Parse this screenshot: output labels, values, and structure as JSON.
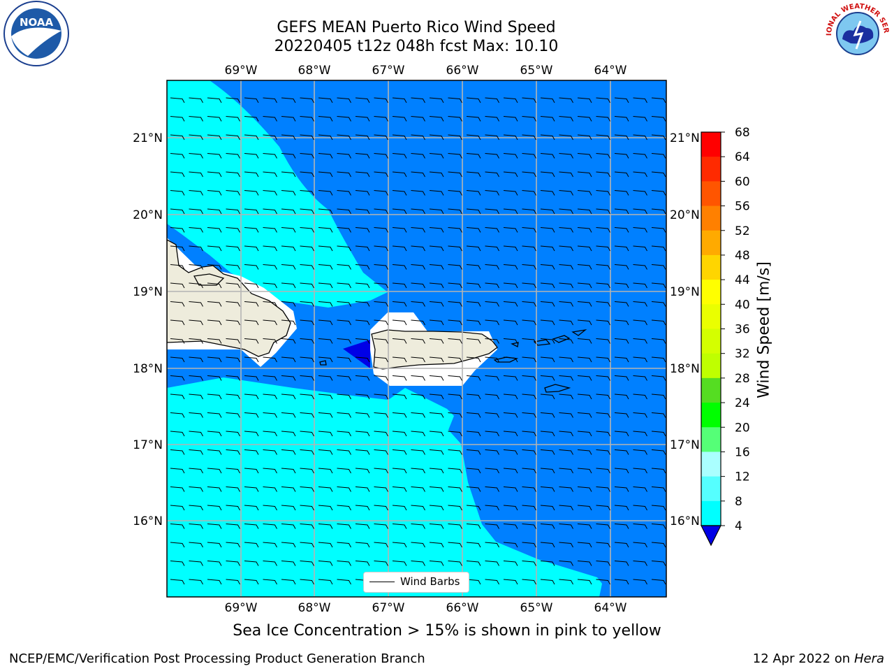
{
  "title": {
    "line1": "GEFS MEAN Puerto Rico Wind Speed",
    "line2": "20220405 t12z 048h fcst   Max: 10.10"
  },
  "map": {
    "lon_labels": [
      "69°W",
      "68°W",
      "67°W",
      "66°W",
      "65°W",
      "64°W"
    ],
    "lat_labels": [
      "21°N",
      "20°N",
      "19°N",
      "18°N",
      "17°N",
      "16°N"
    ],
    "legend_label": "Wind Barbs",
    "colors": {
      "ocean_dark": "#0080ff",
      "ocean_light": "#00ffff",
      "land": "#eeecdc",
      "grid": "#b4b4b4",
      "masked": "#ffffff",
      "high_pocket": "#0000e6"
    }
  },
  "colorbar": {
    "label": "Wind Speed [m/s]",
    "tick_labels": [
      "68",
      "64",
      "60",
      "56",
      "52",
      "48",
      "44",
      "40",
      "36",
      "32",
      "28",
      "24",
      "20",
      "16",
      "12",
      "8",
      "4"
    ],
    "colors_top_to_bottom": [
      "#ff0000",
      "#ff2a00",
      "#ff5500",
      "#ff8000",
      "#ffaa00",
      "#ffd500",
      "#ffff00",
      "#eaff00",
      "#d4ff00",
      "#bfff00",
      "#55dd22",
      "#00ff00",
      "#55ff77",
      "#aaffff",
      "#55ffff",
      "#00ffff",
      "#0080ff"
    ],
    "extend_color": "#0000e6"
  },
  "caption": "Sea Ice Concentration > 15% is shown in pink to yellow",
  "footer": {
    "left": "NCEP/EMC/Verification Post Processing Product Generation Branch",
    "date": "12 Apr 2022 on ",
    "machine": "Hera"
  },
  "logos": {
    "noaa_text": "NOAA",
    "nws_text": "NATIONAL WEATHER SERVICE"
  }
}
